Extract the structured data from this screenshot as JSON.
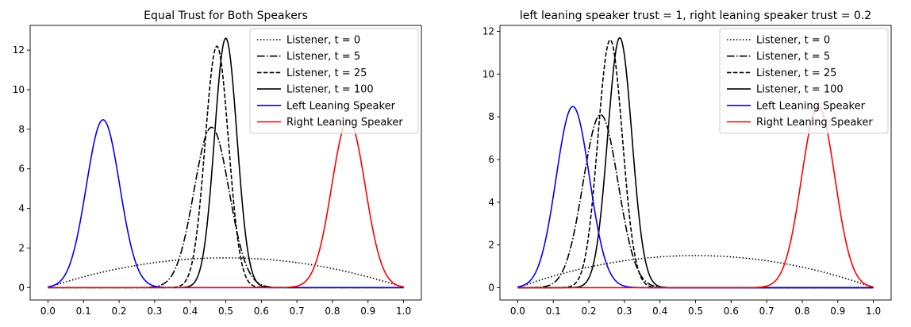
{
  "chart_data": [
    {
      "type": "line",
      "title": "Equal Trust for Both Speakers",
      "xlabel": "",
      "ylabel": "",
      "xlim": [
        -0.05,
        1.05
      ],
      "ylim": [
        -0.63,
        13.25
      ],
      "xticks": [
        0.0,
        0.1,
        0.2,
        0.3,
        0.4,
        0.5,
        0.6,
        0.7,
        0.8,
        0.9,
        1.0
      ],
      "xtick_labels": [
        "0.0",
        "0.1",
        "0.2",
        "0.3",
        "0.4",
        "0.5",
        "0.6",
        "0.7",
        "0.8",
        "0.9",
        "1.0"
      ],
      "yticks": [
        0,
        2,
        4,
        6,
        8,
        10,
        12
      ],
      "ytick_labels": [
        "0",
        "2",
        "4",
        "6",
        "8",
        "10",
        "12"
      ],
      "grid": false,
      "legend_location": "upper-right",
      "series": [
        {
          "name": "Listener, t = 0",
          "color": "#000000",
          "style": "dotted",
          "dist": "beta",
          "a": 2,
          "b": 2
        },
        {
          "name": "Listener, t = 5",
          "color": "#000000",
          "style": "dashdot",
          "dist": "gaussian",
          "mu": 0.46,
          "sigma": 0.0492,
          "peak": 8.1
        },
        {
          "name": "Listener, t = 25",
          "color": "#000000",
          "style": "dashed",
          "dist": "gaussian",
          "mu": 0.475,
          "sigma": 0.0327,
          "peak": 12.2
        },
        {
          "name": "Listener, t = 100",
          "color": "#000000",
          "style": "solid",
          "dist": "gaussian",
          "mu": 0.5,
          "sigma": 0.0316,
          "peak": 12.6
        },
        {
          "name": "Left Leaning Speaker",
          "color": "#0000ff",
          "style": "solid",
          "dist": "gaussian",
          "mu": 0.155,
          "sigma": 0.047,
          "peak": 8.48
        },
        {
          "name": "Right Leaning Speaker",
          "color": "#ff0000",
          "style": "solid",
          "dist": "gaussian",
          "mu": 0.845,
          "sigma": 0.047,
          "peak": 8.48
        }
      ]
    },
    {
      "type": "line",
      "title": "left leaning speaker trust = 1, right leaning speaker trust = 0.2",
      "xlabel": "",
      "ylabel": "",
      "xlim": [
        -0.05,
        1.05
      ],
      "ylim": [
        -0.58,
        12.28
      ],
      "xticks": [
        0.0,
        0.1,
        0.2,
        0.3,
        0.4,
        0.5,
        0.6,
        0.7,
        0.8,
        0.9,
        1.0
      ],
      "xtick_labels": [
        "0.0",
        "0.1",
        "0.2",
        "0.3",
        "0.4",
        "0.5",
        "0.6",
        "0.7",
        "0.8",
        "0.9",
        "1.0"
      ],
      "yticks": [
        0,
        2,
        4,
        6,
        8,
        10,
        12
      ],
      "ytick_labels": [
        "0",
        "2",
        "4",
        "6",
        "8",
        "10",
        "12"
      ],
      "grid": false,
      "legend_location": "upper-right",
      "series": [
        {
          "name": "Listener, t = 0",
          "color": "#000000",
          "style": "dotted",
          "dist": "beta",
          "a": 2,
          "b": 2
        },
        {
          "name": "Listener, t = 5",
          "color": "#000000",
          "style": "dashdot",
          "dist": "gaussian",
          "mu": 0.233,
          "sigma": 0.0492,
          "peak": 8.1
        },
        {
          "name": "Listener, t = 25",
          "color": "#000000",
          "style": "dashed",
          "dist": "gaussian",
          "mu": 0.26,
          "sigma": 0.0344,
          "peak": 11.6
        },
        {
          "name": "Listener, t = 100",
          "color": "#000000",
          "style": "solid",
          "dist": "gaussian",
          "mu": 0.287,
          "sigma": 0.0341,
          "peak": 11.7
        },
        {
          "name": "Left Leaning Speaker",
          "color": "#0000ff",
          "style": "solid",
          "dist": "gaussian",
          "mu": 0.155,
          "sigma": 0.047,
          "peak": 8.48
        },
        {
          "name": "Right Leaning Speaker",
          "color": "#ff0000",
          "style": "solid",
          "dist": "gaussian",
          "mu": 0.845,
          "sigma": 0.047,
          "peak": 8.48
        }
      ]
    }
  ]
}
